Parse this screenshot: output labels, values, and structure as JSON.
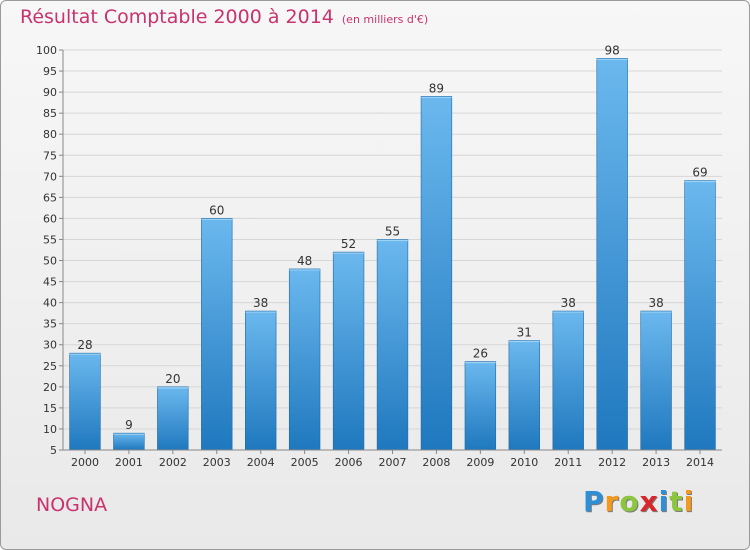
{
  "title": "Résultat Comptable 2000 à 2014",
  "unit_note": "(en milliers d'€)",
  "place_name": "NOGNA",
  "brand": {
    "text": "Proxiti",
    "letters": [
      "P",
      "r",
      "o",
      "x",
      "i",
      "t",
      "i"
    ],
    "colors": [
      "#2e8fd6",
      "#f39a1e",
      "#8cc63f",
      "#d9262b",
      "#2e8fd6",
      "#8cc63f",
      "#f39a1e"
    ]
  },
  "colors": {
    "bar_light": "#6bb8ee",
    "bar_dark": "#1f78be",
    "title": "#c8336d",
    "grid": "#d6d6d6"
  },
  "chart_data": {
    "type": "bar",
    "categories": [
      "2000",
      "2001",
      "2002",
      "2003",
      "2004",
      "2005",
      "2006",
      "2007",
      "2008",
      "2009",
      "2010",
      "2011",
      "2012",
      "2013",
      "2014"
    ],
    "values": [
      28,
      9,
      20,
      60,
      38,
      48,
      52,
      55,
      89,
      26,
      31,
      38,
      98,
      38,
      69
    ],
    "ylim": [
      5,
      100
    ],
    "yticks": [
      5,
      10,
      15,
      20,
      25,
      30,
      35,
      40,
      45,
      50,
      55,
      60,
      65,
      70,
      75,
      80,
      85,
      90,
      95,
      100
    ],
    "grid": true,
    "data_labels": true
  }
}
